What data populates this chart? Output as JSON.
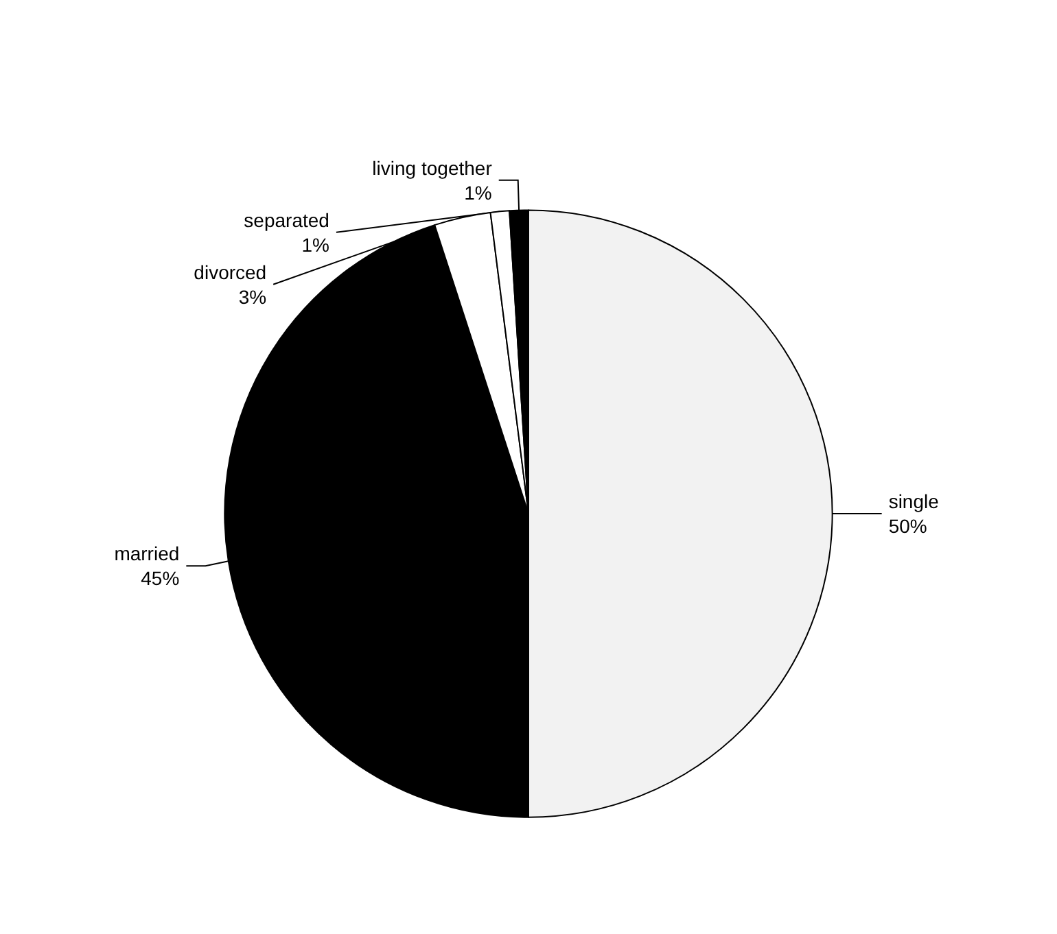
{
  "chart_data": {
    "type": "pie",
    "categories": [
      "single",
      "married",
      "divorced",
      "separated",
      "living together"
    ],
    "values": [
      50,
      45,
      3,
      1,
      1
    ],
    "value_labels": [
      "50%",
      "45%",
      "3%",
      "1%",
      "1%"
    ],
    "colors": [
      "#f2f2f2",
      "#000000",
      "#ffffff",
      "#ffffff",
      "#000000"
    ],
    "legend": false
  }
}
